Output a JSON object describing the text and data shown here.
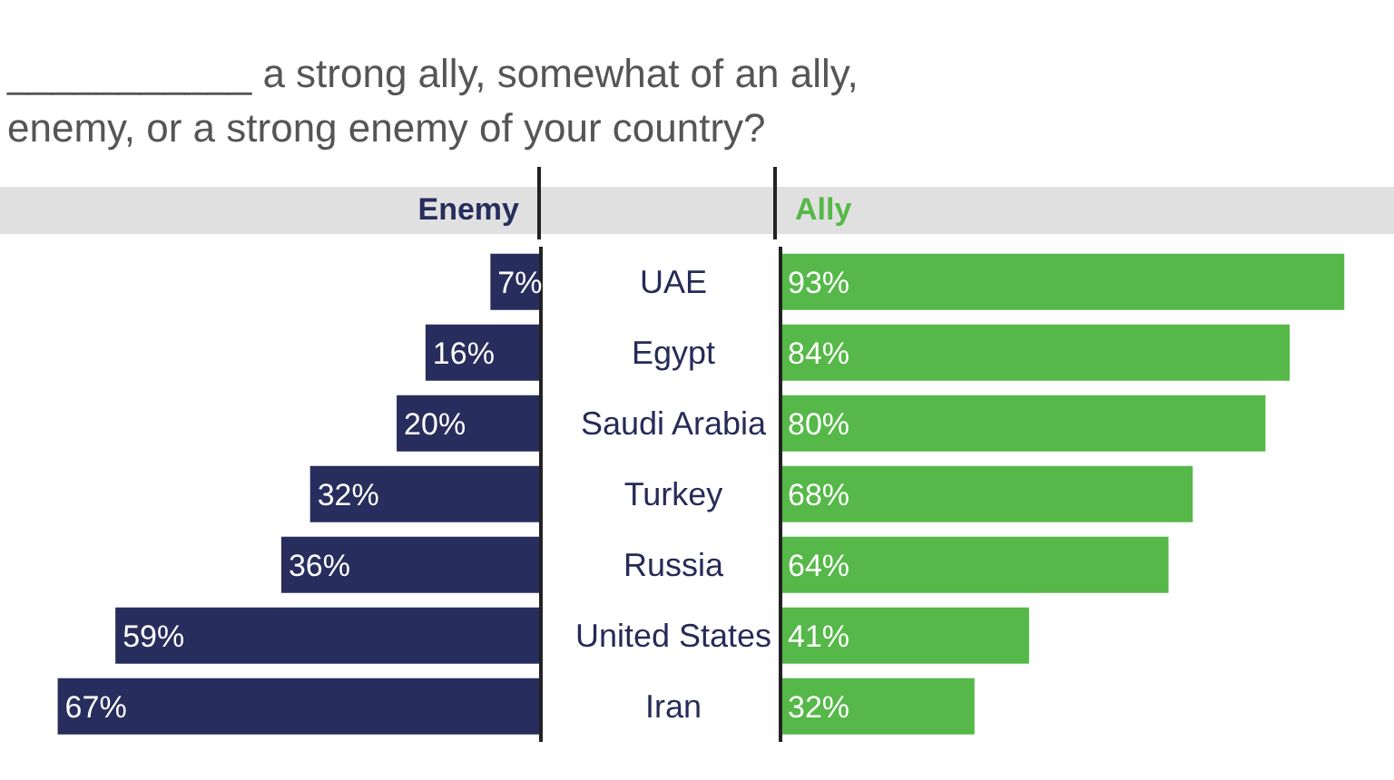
{
  "chart_data": [
    {
      "type": "bar",
      "orientation": "horizontal",
      "title": "___________ a strong ally, somewhat of an ally,\nenemy, or a strong enemy of your country?",
      "categories": [
        "UAE",
        "Egypt",
        "Saudi Arabia",
        "Turkey",
        "Russia",
        "United States",
        "Iran"
      ],
      "series": [
        {
          "name": "Enemy",
          "color": "#272d5c",
          "values": [
            7,
            16,
            20,
            32,
            36,
            59,
            67
          ],
          "value_labels": [
            "7%",
            "16%",
            "20%",
            "32%",
            "36%",
            "59%",
            "67%"
          ]
        }
      ],
      "xlim": [
        75,
        0
      ],
      "tick_labels": "y"
    },
    {
      "type": "bar",
      "orientation": "horizontal",
      "categories": [
        null,
        null,
        null,
        null,
        null,
        null,
        null
      ],
      "series": [
        {
          "name": "Ally",
          "color": "#55b848",
          "values": [
            93,
            84,
            80,
            68,
            64,
            41,
            32
          ],
          "value_labels": [
            "93%",
            "84%",
            "80%",
            "68%",
            "64%",
            "41%",
            "32%"
          ]
        }
      ],
      "tick_labels": false
    }
  ]
}
